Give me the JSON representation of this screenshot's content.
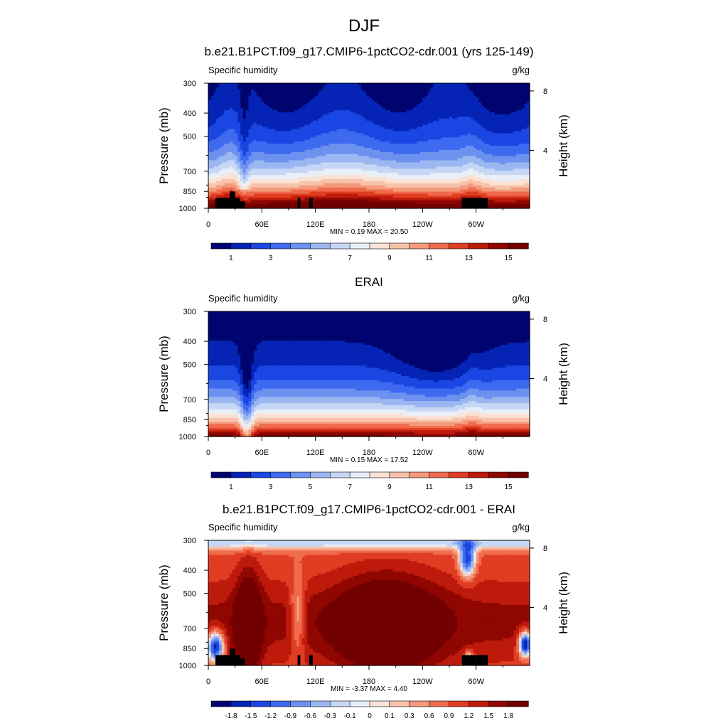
{
  "figure": {
    "title": "DJF"
  },
  "chart_data": [
    {
      "type": "heatmap",
      "panel": "model",
      "title": "b.e21.B1PCT.f09_g17.CMIP6-1pctCO2-cdr.001 (yrs 125-149)",
      "left_label": "Specific humidity",
      "units": "g/kg",
      "xlabel": "",
      "ylabel": "Pressure (mb)",
      "y2label": "Height (km)",
      "x_ticks": [
        "0",
        "60E",
        "120E",
        "180",
        "120W",
        "60W"
      ],
      "x_tick_values": [
        0,
        60,
        120,
        180,
        240,
        300
      ],
      "xlim": [
        0,
        360
      ],
      "y_ticks": [
        "300",
        "400",
        "500",
        "700",
        "850",
        "1000"
      ],
      "y_tick_values": [
        300,
        400,
        500,
        700,
        850,
        1000
      ],
      "ylim": [
        1000,
        300
      ],
      "y2_ticks": [
        "8",
        "4"
      ],
      "y2_tick_values": [
        8,
        4
      ],
      "stats": "MIN =   0.19  MAX =  20.50",
      "colorbar_labels": [
        "1",
        "3",
        "5",
        "7",
        "9",
        "11",
        "13",
        "15"
      ],
      "colorbar_colors": [
        "#00046e",
        "#0524b5",
        "#1a47e3",
        "#3e6af0",
        "#6c91ef",
        "#9bb7f2",
        "#c6d7f5",
        "#e9eff8",
        "#fae2d5",
        "#f8c3ab",
        "#f49a7d",
        "#ef6b4d",
        "#e03d22",
        "#bd1a0c",
        "#900601",
        "#720000"
      ],
      "contour_levels": [
        1,
        2,
        3,
        4,
        5,
        6,
        7,
        8,
        9,
        10,
        11,
        12,
        13,
        14,
        15
      ]
    },
    {
      "type": "heatmap",
      "panel": "obs",
      "title": "ERAI",
      "left_label": "Specific humidity",
      "units": "g/kg",
      "xlabel": "",
      "ylabel": "Pressure (mb)",
      "y2label": "Height (km)",
      "x_ticks": [
        "0",
        "60E",
        "120E",
        "180",
        "120W",
        "60W"
      ],
      "x_tick_values": [
        0,
        60,
        120,
        180,
        240,
        300
      ],
      "xlim": [
        0,
        360
      ],
      "y_ticks": [
        "300",
        "400",
        "500",
        "700",
        "850",
        "1000"
      ],
      "y_tick_values": [
        300,
        400,
        500,
        700,
        850,
        1000
      ],
      "ylim": [
        1000,
        300
      ],
      "y2_ticks": [
        "8",
        "4"
      ],
      "y2_tick_values": [
        8,
        4
      ],
      "stats": "MIN =   0.15  MAX =  17.52",
      "colorbar_labels": [
        "1",
        "3",
        "5",
        "7",
        "9",
        "11",
        "13",
        "15"
      ],
      "colorbar_colors": [
        "#00046e",
        "#0524b5",
        "#1a47e3",
        "#3e6af0",
        "#6c91ef",
        "#9bb7f2",
        "#c6d7f5",
        "#e9eff8",
        "#fae2d5",
        "#f8c3ab",
        "#f49a7d",
        "#ef6b4d",
        "#e03d22",
        "#bd1a0c",
        "#900601",
        "#720000"
      ],
      "contour_levels": [
        1,
        2,
        3,
        4,
        5,
        6,
        7,
        8,
        9,
        10,
        11,
        12,
        13,
        14,
        15
      ]
    },
    {
      "type": "heatmap",
      "panel": "diff",
      "title": "b.e21.B1PCT.f09_g17.CMIP6-1pctCO2-cdr.001 - ERAI",
      "left_label": "Specific humidity",
      "units": "g/kg",
      "xlabel": "",
      "ylabel": "Pressure (mb)",
      "y2label": "Height (km)",
      "x_ticks": [
        "0",
        "60E",
        "120E",
        "180",
        "120W",
        "60W"
      ],
      "x_tick_values": [
        0,
        60,
        120,
        180,
        240,
        300
      ],
      "xlim": [
        0,
        360
      ],
      "y_ticks": [
        "300",
        "400",
        "500",
        "700",
        "850",
        "1000"
      ],
      "y_tick_values": [
        300,
        400,
        500,
        700,
        850,
        1000
      ],
      "ylim": [
        1000,
        300
      ],
      "y2_ticks": [
        "8",
        "4"
      ],
      "y2_tick_values": [
        8,
        4
      ],
      "stats": "MIN =  -3.37  MAX =   4.40",
      "colorbar_labels": [
        "-1.8",
        "-1.5",
        "-1.2",
        "-0.9",
        "-0.6",
        "-0.3",
        "-0.1",
        "0",
        "0.1",
        "0.3",
        "0.6",
        "0.9",
        "1.2",
        "1.5",
        "1.8"
      ],
      "colorbar_colors": [
        "#00046e",
        "#0524b5",
        "#1a47e3",
        "#3e6af0",
        "#6c91ef",
        "#9bb7f2",
        "#c6d7f5",
        "#e9eff8",
        "#fae2d5",
        "#f8c3ab",
        "#f49a7d",
        "#ef6b4d",
        "#e03d22",
        "#bd1a0c",
        "#900601",
        "#720000"
      ],
      "contour_levels": [
        -1.8,
        -1.5,
        -1.2,
        -0.9,
        -0.6,
        -0.3,
        -0.1,
        0,
        0.1,
        0.3,
        0.6,
        0.9,
        1.2,
        1.5,
        1.8
      ]
    }
  ]
}
